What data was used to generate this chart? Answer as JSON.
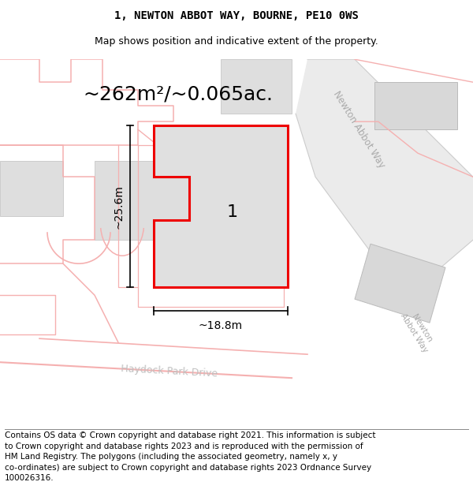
{
  "title": "1, NEWTON ABBOT WAY, BOURNE, PE10 0WS",
  "subtitle": "Map shows position and indicative extent of the property.",
  "area_text": "~262m²/~0.065ac.",
  "plot_label": "1",
  "dim_width": "~18.8m",
  "dim_height": "~25.6m",
  "footnote": "Contains OS data © Crown copyright and database right 2021. This information is subject\nto Crown copyright and database rights 2023 and is reproduced with the permission of\nHM Land Registry. The polygons (including the associated geometry, namely x, y\nco-ordinates) are subject to Crown copyright and database rights 2023 Ordnance Survey\n100026316.",
  "bg_color": "#ffffff",
  "pink": "#f5b0b0",
  "plot_fill": "#e0e0e0",
  "plot_edge": "#ee0000",
  "gray_fill": "#d4d4d4",
  "gray_edge": "#bbbbbb",
  "road_label": "#aaaaaa",
  "road_fill": "#e8e8e8",
  "title_fontsize": 10,
  "subtitle_fontsize": 9,
  "area_fontsize": 18,
  "label_fontsize": 16,
  "dim_fontsize": 10,
  "footnote_fontsize": 7.5
}
